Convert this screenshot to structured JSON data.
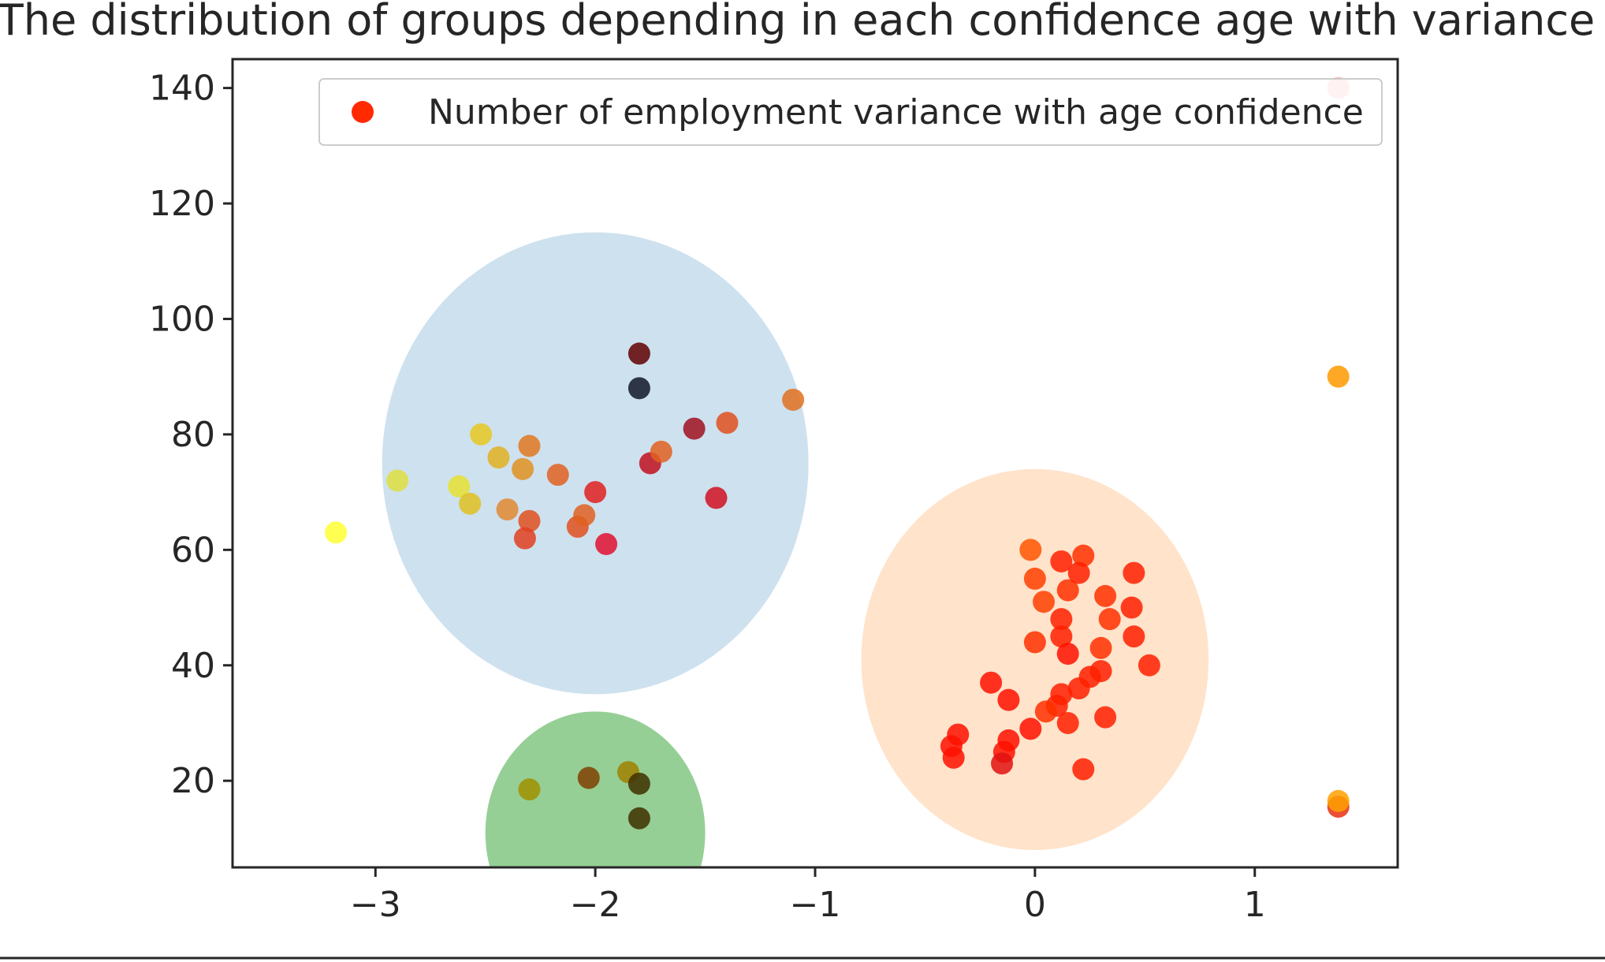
{
  "chart_data": {
    "type": "scatter",
    "title": "The distribution of groups depending in each confidence age with variance",
    "xlabel": "",
    "ylabel": "",
    "xlim": [
      -3.65,
      1.65
    ],
    "ylim": [
      5,
      145
    ],
    "x_ticks": [
      {
        "value": -3,
        "label": "−3"
      },
      {
        "value": -2,
        "label": "−2"
      },
      {
        "value": -1,
        "label": "−1"
      },
      {
        "value": 0,
        "label": "0"
      },
      {
        "value": 1,
        "label": "1"
      }
    ],
    "y_ticks": [
      {
        "value": 20,
        "label": "20"
      },
      {
        "value": 40,
        "label": "40"
      },
      {
        "value": 60,
        "label": "60"
      },
      {
        "value": 80,
        "label": "80"
      },
      {
        "value": 100,
        "label": "100"
      },
      {
        "value": 120,
        "label": "120"
      },
      {
        "value": 140,
        "label": "140"
      }
    ],
    "grid": false,
    "legend": {
      "placement": "top-right",
      "entries": [
        {
          "label": "Number of employment variance with age confidence",
          "color": "#ff2a00"
        }
      ]
    },
    "clusters": [
      {
        "cx": -2.0,
        "cy": 75,
        "rx": 0.97,
        "ry": 40,
        "color": "#1f77b4",
        "opacity": 0.22
      },
      {
        "cx": -2.0,
        "cy": 11,
        "rx": 0.5,
        "ry": 21,
        "color": "#2ca02c",
        "opacity": 0.5
      },
      {
        "cx": 0.0,
        "cy": 41,
        "rx": 0.79,
        "ry": 33,
        "color": "#ff7f0e",
        "opacity": 0.22
      }
    ],
    "series": [
      {
        "points": [
          {
            "x": 1.38,
            "y": 140.0,
            "color": "#ffb3b3"
          },
          {
            "x": 1.38,
            "y": 90.0,
            "color": "#ff9900"
          },
          {
            "x": 1.38,
            "y": 15.5,
            "color": "#e83010"
          },
          {
            "x": 1.38,
            "y": 16.5,
            "color": "#ffa000"
          },
          {
            "x": -3.18,
            "y": 63.0,
            "color": "#ffff33"
          },
          {
            "x": -2.9,
            "y": 72.0,
            "color": "#dede40"
          },
          {
            "x": -2.62,
            "y": 71.0,
            "color": "#e6e030"
          },
          {
            "x": -2.57,
            "y": 68.0,
            "color": "#e0c020"
          },
          {
            "x": -2.52,
            "y": 80.0,
            "color": "#e6c820"
          },
          {
            "x": -2.44,
            "y": 76.0,
            "color": "#e0b020"
          },
          {
            "x": -2.4,
            "y": 67.0,
            "color": "#e08830"
          },
          {
            "x": -2.33,
            "y": 74.0,
            "color": "#e09020"
          },
          {
            "x": -2.3,
            "y": 78.0,
            "color": "#e07820"
          },
          {
            "x": -2.3,
            "y": 65.0,
            "color": "#e05020"
          },
          {
            "x": -2.32,
            "y": 62.0,
            "color": "#e04020"
          },
          {
            "x": -2.17,
            "y": 73.0,
            "color": "#e06020"
          },
          {
            "x": -2.08,
            "y": 64.0,
            "color": "#e05020"
          },
          {
            "x": -2.05,
            "y": 66.0,
            "color": "#e06020"
          },
          {
            "x": -2.0,
            "y": 70.0,
            "color": "#e02020"
          },
          {
            "x": -1.95,
            "y": 61.0,
            "color": "#e01030"
          },
          {
            "x": -1.8,
            "y": 94.0,
            "color": "#600000"
          },
          {
            "x": -1.8,
            "y": 88.0,
            "color": "#101828"
          },
          {
            "x": -1.75,
            "y": 75.0,
            "color": "#c01020"
          },
          {
            "x": -1.7,
            "y": 77.0,
            "color": "#e06020"
          },
          {
            "x": -1.55,
            "y": 81.0,
            "color": "#a01020"
          },
          {
            "x": -1.45,
            "y": 69.0,
            "color": "#d01020"
          },
          {
            "x": -1.4,
            "y": 82.0,
            "color": "#e05020"
          },
          {
            "x": -1.1,
            "y": 86.0,
            "color": "#e07020"
          },
          {
            "x": -2.3,
            "y": 18.5,
            "color": "#a09000"
          },
          {
            "x": -2.03,
            "y": 20.5,
            "color": "#804000"
          },
          {
            "x": -1.85,
            "y": 21.5,
            "color": "#a08000"
          },
          {
            "x": -1.8,
            "y": 19.5,
            "color": "#403000"
          },
          {
            "x": -1.8,
            "y": 13.5,
            "color": "#403000"
          },
          {
            "x": -0.02,
            "y": 60.0,
            "color": "#ff5500"
          },
          {
            "x": 0.0,
            "y": 55.0,
            "color": "#ff4000"
          },
          {
            "x": 0.04,
            "y": 51.0,
            "color": "#ff4000"
          },
          {
            "x": 0.12,
            "y": 58.0,
            "color": "#ff2000"
          },
          {
            "x": 0.15,
            "y": 53.0,
            "color": "#ff3000"
          },
          {
            "x": 0.22,
            "y": 59.0,
            "color": "#ff3000"
          },
          {
            "x": 0.2,
            "y": 56.0,
            "color": "#ff2000"
          },
          {
            "x": 0.32,
            "y": 52.0,
            "color": "#ff3000"
          },
          {
            "x": 0.34,
            "y": 48.0,
            "color": "#ff3000"
          },
          {
            "x": 0.3,
            "y": 43.0,
            "color": "#ff3000"
          },
          {
            "x": 0.45,
            "y": 56.0,
            "color": "#ff2000"
          },
          {
            "x": 0.44,
            "y": 50.0,
            "color": "#ff2000"
          },
          {
            "x": 0.45,
            "y": 45.0,
            "color": "#ff2000"
          },
          {
            "x": 0.52,
            "y": 40.0,
            "color": "#ff2000"
          },
          {
            "x": 0.12,
            "y": 48.0,
            "color": "#ff2000"
          },
          {
            "x": 0.12,
            "y": 45.0,
            "color": "#ff2000"
          },
          {
            "x": 0.0,
            "y": 44.0,
            "color": "#ff3000"
          },
          {
            "x": 0.15,
            "y": 42.0,
            "color": "#ff1000"
          },
          {
            "x": 0.25,
            "y": 38.0,
            "color": "#ff2000"
          },
          {
            "x": 0.3,
            "y": 39.0,
            "color": "#ff2000"
          },
          {
            "x": 0.2,
            "y": 36.0,
            "color": "#ff2000"
          },
          {
            "x": 0.12,
            "y": 35.0,
            "color": "#ff2000"
          },
          {
            "x": 0.1,
            "y": 33.0,
            "color": "#ff2000"
          },
          {
            "x": 0.05,
            "y": 32.0,
            "color": "#ff3000"
          },
          {
            "x": 0.15,
            "y": 30.0,
            "color": "#ff2000"
          },
          {
            "x": 0.32,
            "y": 31.0,
            "color": "#ff2000"
          },
          {
            "x": -0.2,
            "y": 37.0,
            "color": "#ff1000"
          },
          {
            "x": -0.12,
            "y": 34.0,
            "color": "#ff1000"
          },
          {
            "x": -0.02,
            "y": 29.0,
            "color": "#ff1000"
          },
          {
            "x": -0.12,
            "y": 27.0,
            "color": "#ff1000"
          },
          {
            "x": -0.14,
            "y": 25.0,
            "color": "#ff1000"
          },
          {
            "x": -0.15,
            "y": 23.0,
            "color": "#e01010"
          },
          {
            "x": -0.35,
            "y": 28.0,
            "color": "#ff1000"
          },
          {
            "x": -0.38,
            "y": 26.0,
            "color": "#ff1000"
          },
          {
            "x": -0.37,
            "y": 24.0,
            "color": "#ff1000"
          },
          {
            "x": 0.22,
            "y": 22.0,
            "color": "#ff2000"
          }
        ]
      }
    ]
  }
}
